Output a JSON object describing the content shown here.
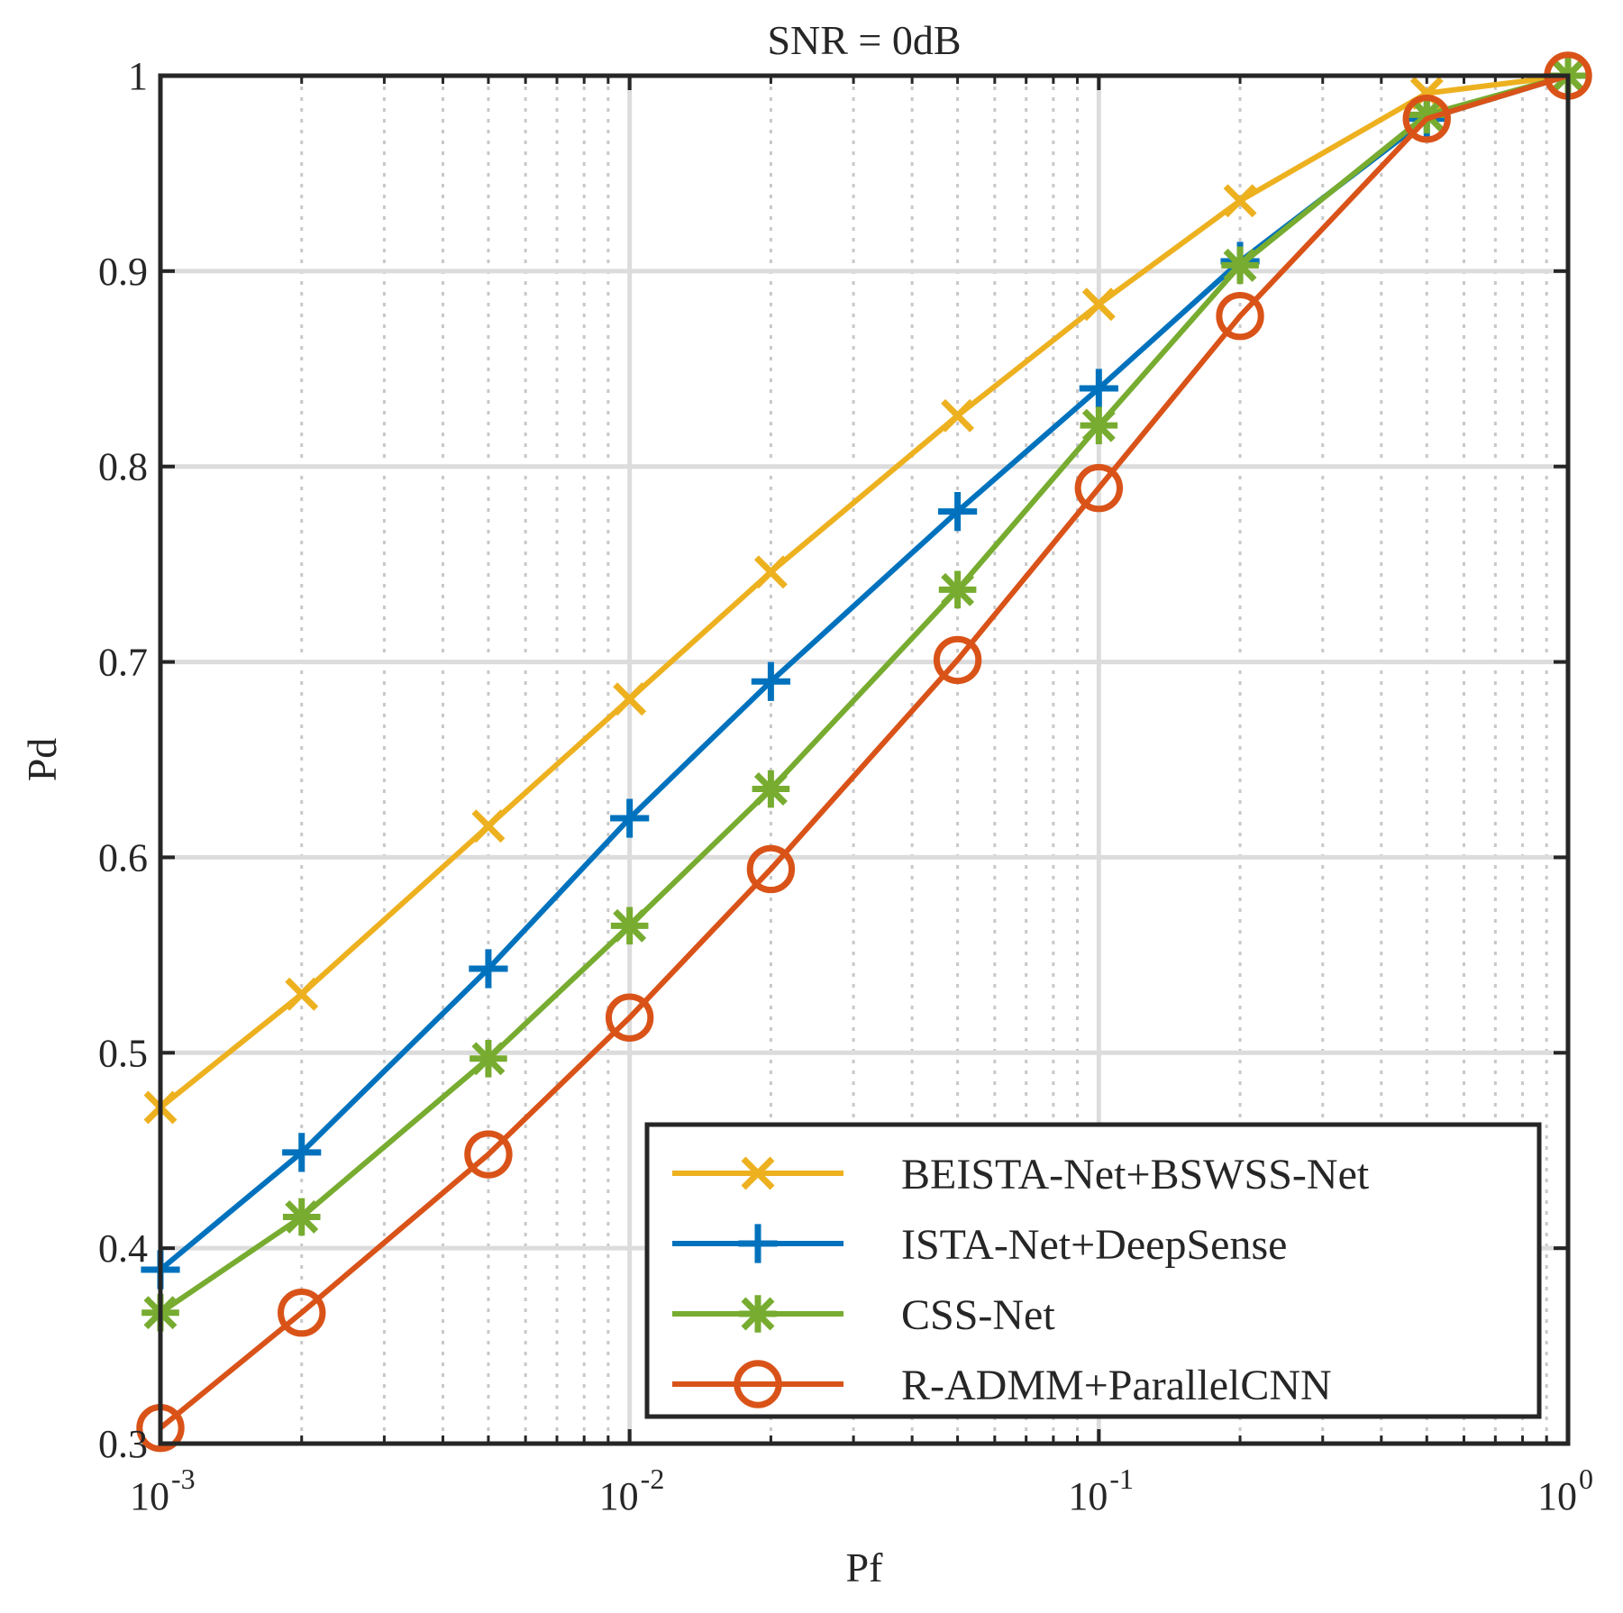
{
  "chart_data": {
    "type": "line",
    "title": "SNR = 0dB",
    "xlabel": "Pf",
    "ylabel": "Pd",
    "xscale": "log",
    "xlim": [
      0.001,
      1
    ],
    "ylim": [
      0.3,
      1
    ],
    "x_ticks": [
      {
        "value": 0.001,
        "base": "10",
        "exp": "-3"
      },
      {
        "value": 0.01,
        "base": "10",
        "exp": "-2"
      },
      {
        "value": 0.1,
        "base": "10",
        "exp": "-1"
      },
      {
        "value": 1,
        "base": "10",
        "exp": "0"
      }
    ],
    "y_ticks": [
      "0.3",
      "0.4",
      "0.5",
      "0.6",
      "0.7",
      "0.8",
      "0.9",
      "1"
    ],
    "grid": true,
    "minor_grid": true,
    "legend_position": "bottom-right",
    "x": [
      0.001,
      0.002,
      0.005,
      0.01,
      0.02,
      0.05,
      0.1,
      0.2,
      0.5,
      1
    ],
    "series": [
      {
        "name": "BEISTA-Net+BSWSS-Net",
        "marker": "x",
        "color": "#EDB120",
        "values": [
          0.472,
          0.53,
          0.616,
          0.681,
          0.746,
          0.826,
          0.883,
          0.936,
          0.991,
          1.0
        ]
      },
      {
        "name": "ISTA-Net+DeepSense",
        "marker": "plus",
        "color": "#0072BD",
        "values": [
          0.389,
          0.449,
          0.543,
          0.62,
          0.69,
          0.777,
          0.84,
          0.905,
          0.978,
          1.0
        ]
      },
      {
        "name": "CSS-Net",
        "marker": "asterisk",
        "color": "#77AC30",
        "values": [
          0.367,
          0.416,
          0.497,
          0.565,
          0.635,
          0.737,
          0.821,
          0.903,
          0.98,
          1.0
        ]
      },
      {
        "name": "R-ADMM+ParallelCNN",
        "marker": "circle",
        "color": "#D95319",
        "values": [
          0.308,
          0.367,
          0.448,
          0.518,
          0.594,
          0.701,
          0.789,
          0.877,
          0.978,
          1.0
        ]
      }
    ]
  }
}
